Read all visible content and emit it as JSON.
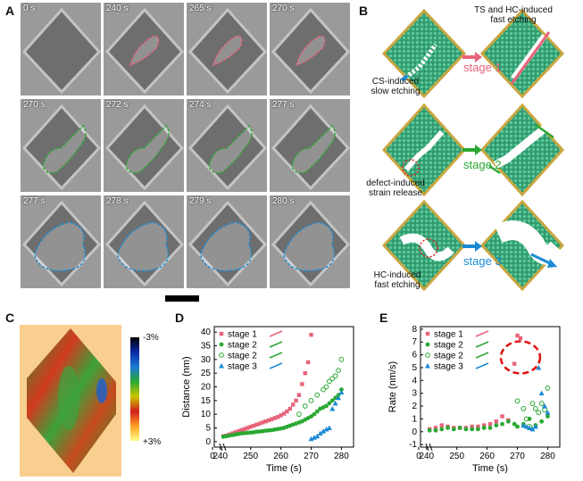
{
  "panels": {
    "a": "A",
    "b": "B",
    "c": "C",
    "d": "D",
    "e": "E"
  },
  "tem_frames": [
    "0 s",
    "240 s",
    "265 s",
    "270 s",
    "270 s",
    "272 s",
    "274 s",
    "277 s",
    "277 s",
    "278 s",
    "279 s",
    "280 s"
  ],
  "schematic": {
    "top_label": "TS and HC-induced\nfast etching",
    "cs_label": "CS-induced\nslow etching",
    "defect_label": "defect-induced\nstrain release",
    "hc_label": "HC-induced\nfast etching",
    "stage1": "stage 1",
    "stage2": "stage 2",
    "stage3": "stage 3"
  },
  "colorbar": {
    "top": "-3%",
    "bottom": "+3%"
  },
  "colors": {
    "stage1": "#e8637a",
    "stage2": "#2aa832",
    "stage3": "#1a8ad4",
    "sheet": "#2e9a6e",
    "edge": "#c9a640"
  },
  "chart_data": [
    {
      "type": "scatter",
      "panel": "D",
      "xlabel": "Time (s)",
      "ylabel": "Distance (nm)",
      "xlim": [
        238,
        284
      ],
      "ylim": [
        -2,
        42
      ],
      "xticks": [
        "0",
        "240",
        "250",
        "260",
        "270",
        "280"
      ],
      "yticks": [
        "0",
        "5",
        "10",
        "15",
        "20",
        "25",
        "30",
        "35",
        "40"
      ],
      "legend": [
        "stage 1",
        "stage 2",
        "stage 2",
        "stage 3"
      ],
      "series": [
        {
          "name": "stage 1",
          "marker": "square",
          "x": [
            241,
            242,
            243,
            244,
            245,
            246,
            247,
            248,
            249,
            250,
            251,
            252,
            253,
            254,
            255,
            256,
            257,
            258,
            259,
            260,
            261,
            262,
            263,
            264,
            265,
            266,
            267,
            268,
            269,
            270
          ],
          "y": [
            2,
            2.2,
            2.6,
            3,
            3.4,
            3.8,
            4.2,
            4.6,
            5,
            5.4,
            5.8,
            6.2,
            6.6,
            7,
            7.4,
            7.8,
            8.2,
            8.6,
            9,
            9.6,
            10.2,
            11,
            12,
            13.5,
            15,
            17,
            21,
            25,
            29,
            39
          ]
        },
        {
          "name": "stage 2",
          "marker": "filled-circle",
          "x": [
            241,
            242,
            243,
            244,
            245,
            246,
            247,
            248,
            249,
            250,
            251,
            252,
            253,
            254,
            255,
            256,
            257,
            258,
            259,
            260,
            261,
            262,
            263,
            264,
            265,
            266,
            267,
            268,
            269,
            270,
            271,
            272,
            273,
            274,
            275,
            276,
            277,
            278,
            279,
            280
          ],
          "y": [
            1.8,
            2,
            2.2,
            2.4,
            2.6,
            2.8,
            3,
            3.1,
            3.2,
            3.3,
            3.4,
            3.6,
            3.7,
            3.8,
            4,
            4.1,
            4.2,
            4.4,
            4.6,
            4.8,
            5,
            5.4,
            5.8,
            6.2,
            6.6,
            7,
            7.4,
            8,
            8.6,
            9.2,
            10,
            11,
            12,
            12.5,
            13,
            14,
            15,
            16,
            17,
            19
          ]
        },
        {
          "name": "stage 2 (open)",
          "marker": "open-circle",
          "x": [
            266,
            268,
            270,
            272,
            274,
            275,
            276,
            277,
            278,
            279,
            280
          ],
          "y": [
            10,
            13,
            15,
            17,
            19,
            20,
            22,
            23,
            24,
            26,
            30
          ]
        },
        {
          "name": "stage 3",
          "marker": "triangle",
          "x": [
            270,
            271,
            272,
            273,
            274,
            275,
            276,
            277,
            278,
            279,
            280
          ],
          "y": [
            1,
            1.5,
            2,
            3,
            3.8,
            4.5,
            5,
            12,
            14,
            16,
            18
          ]
        }
      ]
    },
    {
      "type": "scatter",
      "panel": "E",
      "xlabel": "Time (s)",
      "ylabel": "Rate (nm/s)",
      "xlim": [
        238,
        284
      ],
      "ylim": [
        -1.2,
        8.2
      ],
      "xticks": [
        "0",
        "240",
        "250",
        "260",
        "270",
        "280"
      ],
      "yticks": [
        "-1",
        "0",
        "1",
        "2",
        "3",
        "4",
        "5",
        "6",
        "7",
        "8"
      ],
      "legend": [
        "stage 1",
        "stage 2",
        "stage 2",
        "stage 3"
      ],
      "series": [
        {
          "name": "stage 1",
          "marker": "square",
          "x": [
            241,
            243,
            245,
            247,
            249,
            251,
            253,
            255,
            257,
            259,
            261,
            263,
            265,
            267,
            269,
            270,
            271
          ],
          "y": [
            0.2,
            0.3,
            0.5,
            0.4,
            0.3,
            0.3,
            0.3,
            0.4,
            0.4,
            0.5,
            0.6,
            0.8,
            1.2,
            0.9,
            5.3,
            7.5,
            7.3
          ]
        },
        {
          "name": "stage 2",
          "marker": "filled-circle",
          "x": [
            241,
            243,
            245,
            247,
            249,
            251,
            253,
            255,
            257,
            259,
            261,
            263,
            265,
            267,
            269,
            270,
            272,
            274,
            276,
            278,
            280
          ],
          "y": [
            0.1,
            0.1,
            0.2,
            0.3,
            0.2,
            0.3,
            0.2,
            0.2,
            0.2,
            0.3,
            0.3,
            0.5,
            0.6,
            0.8,
            0.6,
            0.4,
            0.6,
            1,
            0.5,
            0.8,
            1.2
          ]
        },
        {
          "name": "stage 2 (open)",
          "marker": "open-circle",
          "x": [
            270,
            272,
            273,
            274,
            275,
            276,
            277,
            278,
            279,
            280
          ],
          "y": [
            2.4,
            1.8,
            1,
            0.4,
            2.2,
            1.8,
            1.5,
            2.2,
            1.7,
            3.4
          ]
        },
        {
          "name": "stage 3",
          "marker": "triangle",
          "x": [
            272,
            273,
            274,
            275,
            276,
            277,
            278,
            279,
            280
          ],
          "y": [
            0.5,
            0.4,
            0.3,
            0.2,
            0.4,
            5,
            3,
            2,
            1.5
          ]
        }
      ]
    }
  ]
}
